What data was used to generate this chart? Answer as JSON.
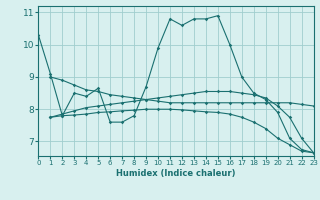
{
  "xlabel": "Humidex (Indice chaleur)",
  "bg_color": "#d8f0ef",
  "grid_color": "#a0cece",
  "line_color": "#1a7070",
  "xlim": [
    0,
    23
  ],
  "ylim": [
    6.55,
    11.2
  ],
  "yticks": [
    7,
    8,
    9,
    10,
    11
  ],
  "xticks": [
    0,
    1,
    2,
    3,
    4,
    5,
    6,
    7,
    8,
    9,
    10,
    11,
    12,
    13,
    14,
    15,
    16,
    17,
    18,
    19,
    20,
    21,
    22,
    23
  ],
  "lines": [
    {
      "x": [
        0,
        1,
        2,
        3,
        4,
        5,
        6,
        7,
        8,
        9,
        10,
        11,
        12,
        13,
        14,
        15,
        16,
        17,
        18,
        19,
        20,
        21,
        22,
        23
      ],
      "y": [
        10.3,
        9.1,
        7.8,
        8.5,
        8.4,
        8.65,
        7.6,
        7.6,
        7.8,
        8.7,
        9.9,
        10.8,
        10.6,
        10.8,
        10.8,
        10.9,
        10.0,
        9.0,
        8.5,
        8.3,
        7.9,
        7.1,
        6.75,
        6.65
      ]
    },
    {
      "x": [
        1,
        2,
        3,
        4,
        5,
        6,
        7,
        8,
        9,
        10,
        11,
        12,
        13,
        14,
        15,
        16,
        17,
        18,
        19,
        20,
        21,
        22,
        23
      ],
      "y": [
        9.0,
        8.9,
        8.75,
        8.6,
        8.55,
        8.45,
        8.4,
        8.35,
        8.3,
        8.25,
        8.2,
        8.2,
        8.2,
        8.2,
        8.2,
        8.2,
        8.2,
        8.2,
        8.2,
        8.2,
        8.2,
        8.15,
        8.1
      ]
    },
    {
      "x": [
        1,
        2,
        3,
        4,
        5,
        6,
        7,
        8,
        9,
        10,
        11,
        12,
        13,
        14,
        15,
        16,
        17,
        18,
        19,
        20,
        21,
        22,
        23
      ],
      "y": [
        7.75,
        7.85,
        7.95,
        8.05,
        8.1,
        8.15,
        8.2,
        8.25,
        8.3,
        8.35,
        8.4,
        8.45,
        8.5,
        8.55,
        8.55,
        8.55,
        8.5,
        8.45,
        8.35,
        8.1,
        7.75,
        7.1,
        6.65
      ]
    },
    {
      "x": [
        1,
        2,
        3,
        4,
        5,
        6,
        7,
        8,
        9,
        10,
        11,
        12,
        13,
        14,
        15,
        16,
        17,
        18,
        19,
        20,
        21,
        22,
        23
      ],
      "y": [
        7.75,
        7.8,
        7.82,
        7.85,
        7.9,
        7.92,
        7.95,
        7.97,
        8.0,
        8.0,
        8.0,
        7.98,
        7.95,
        7.92,
        7.9,
        7.85,
        7.75,
        7.6,
        7.4,
        7.1,
        6.9,
        6.7,
        6.65
      ]
    }
  ]
}
